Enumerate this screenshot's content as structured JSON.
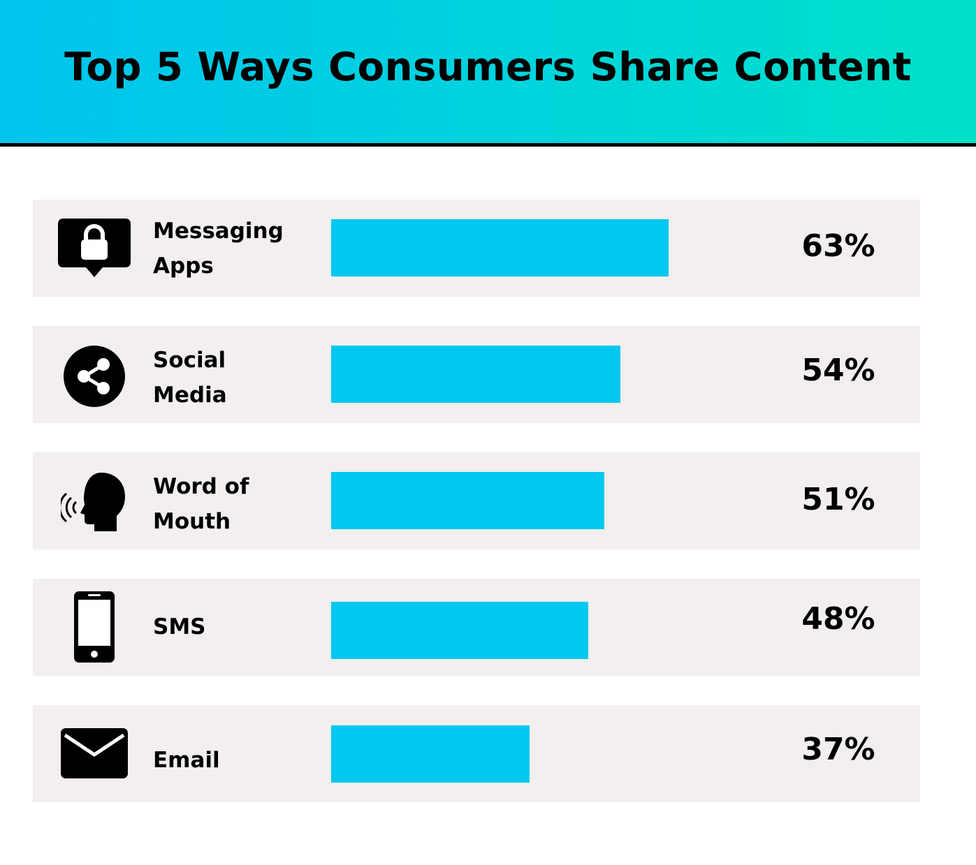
{
  "title": "Top 5 Ways Consumers Share Content",
  "colors": {
    "bar": "#00c8ee",
    "row_bg": "#f2efee",
    "header_start": "#00c4ee",
    "header_end": "#00e0c8"
  },
  "chart_data": {
    "type": "bar",
    "orientation": "horizontal",
    "title": "Top 5 Ways Consumers Share Content",
    "categories": [
      {
        "lines": [
          "Messaging",
          "Apps"
        ],
        "icon": "messaging-lock-icon"
      },
      {
        "lines": [
          "Social",
          "Media"
        ],
        "icon": "share-icon"
      },
      {
        "lines": [
          "Word of",
          "Mouth"
        ],
        "icon": "speaking-head-icon"
      },
      {
        "lines": [
          "SMS"
        ],
        "icon": "smartphone-icon"
      },
      {
        "lines": [
          "Email"
        ],
        "icon": "envelope-icon"
      }
    ],
    "values": [
      63,
      54,
      51,
      48,
      37
    ],
    "value_labels": [
      "63%",
      "54%",
      "51%",
      "48%",
      "37%"
    ],
    "unit": "%",
    "xlim": [
      0,
      100
    ],
    "grid": false,
    "legend": "none"
  }
}
